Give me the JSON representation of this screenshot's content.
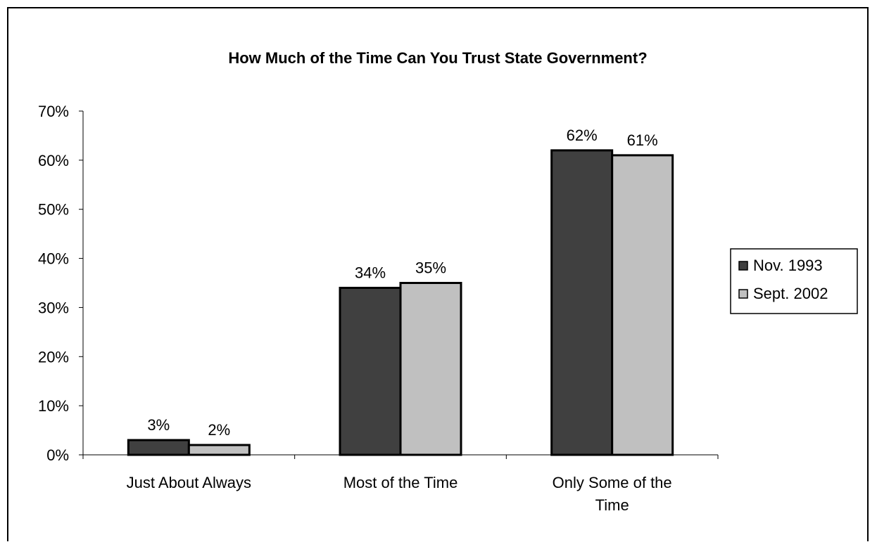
{
  "chart_data": {
    "type": "bar",
    "title": "How Much of the Time Can You Trust State Government?",
    "xlabel": "",
    "ylabel": "",
    "categories": [
      "Just About Always",
      "Most of the Time",
      "Only Some of the Time"
    ],
    "category_lines": [
      [
        "Just About Always"
      ],
      [
        "Most of the Time"
      ],
      [
        "Only Some of the",
        "Time"
      ]
    ],
    "series": [
      {
        "name": "Nov. 1993",
        "values": [
          3,
          34,
          62
        ],
        "labels": [
          "3%",
          "34%",
          "62%"
        ],
        "color": "#404040"
      },
      {
        "name": "Sept. 2002",
        "values": [
          2,
          35,
          61
        ],
        "labels": [
          "2%",
          "35%",
          "61%"
        ],
        "color": "#c0c0c0"
      }
    ],
    "ylim": [
      0,
      70
    ],
    "yticks": [
      0,
      10,
      20,
      30,
      40,
      50,
      60,
      70
    ],
    "ytick_labels": [
      "0%",
      "10%",
      "20%",
      "30%",
      "40%",
      "50%",
      "60%",
      "70%"
    ],
    "grid": false,
    "legend_position": "right"
  }
}
